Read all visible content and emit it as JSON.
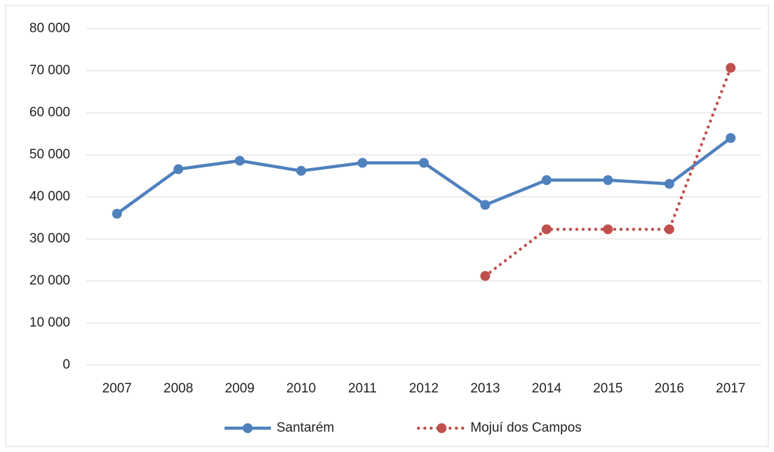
{
  "chart_data": {
    "type": "line",
    "categories": [
      "2007",
      "2008",
      "2009",
      "2010",
      "2011",
      "2012",
      "2013",
      "2014",
      "2015",
      "2016",
      "2017"
    ],
    "series": [
      {
        "name": "Santarém",
        "color": "#4f81bd",
        "line_style": "solid",
        "values": [
          36000,
          46600,
          48600,
          46200,
          48100,
          48100,
          38100,
          44000,
          44000,
          43100,
          54000
        ]
      },
      {
        "name": "Mojuí dos Campos",
        "color": "#c0504d",
        "line_style": "dotted",
        "values": [
          null,
          null,
          null,
          null,
          null,
          null,
          21200,
          32300,
          32300,
          32300,
          70700
        ]
      }
    ],
    "ylim": [
      0,
      80000
    ],
    "yticks": [
      {
        "value": 0,
        "label": "0"
      },
      {
        "value": 10000,
        "label": "10 000"
      },
      {
        "value": 20000,
        "label": "20 000"
      },
      {
        "value": 30000,
        "label": "30 000"
      },
      {
        "value": 40000,
        "label": "40 000"
      },
      {
        "value": 50000,
        "label": "50 000"
      },
      {
        "value": 60000,
        "label": "60 000"
      },
      {
        "value": 70000,
        "label": "70 000"
      },
      {
        "value": 80000,
        "label": "80 000"
      }
    ],
    "grid": true,
    "legend": "bottom"
  }
}
